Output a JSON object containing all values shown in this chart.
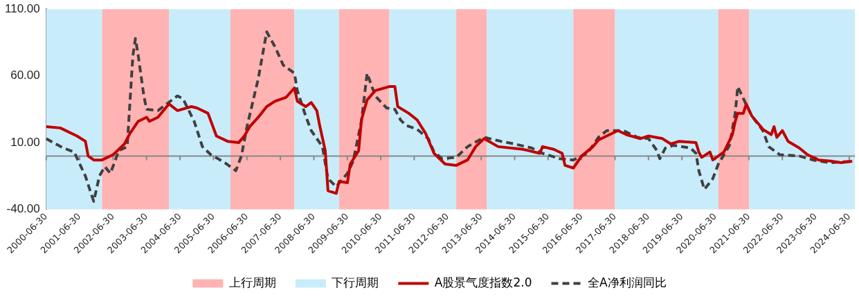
{
  "chart_data": {
    "type": "line",
    "xlim": [
      "2000-06-30",
      "2024-08-31"
    ],
    "xticks": [
      "2000-06-30",
      "2001-06-30",
      "2002-06-30",
      "2003-06-30",
      "2004-06-30",
      "2005-06-30",
      "2006-06-30",
      "2007-06-30",
      "2008-06-30",
      "2009-06-30",
      "2010-06-30",
      "2011-06-30",
      "2012-06-30",
      "2013-06-30",
      "2014-06-30",
      "2015-06-30",
      "2016-06-30",
      "2017-06-30",
      "2018-06-30",
      "2019-06-30",
      "2020-06-30",
      "2021-06-30",
      "2022-06-30",
      "2023-06-30",
      "2024-06-30"
    ],
    "ylim": [
      -40,
      110
    ],
    "yticks": [
      {
        "value": -40,
        "label": "-40.00"
      },
      {
        "value": 10,
        "label": "10.00"
      },
      {
        "value": 60,
        "label": "60.00"
      },
      {
        "value": 110,
        "label": "110.00"
      }
    ],
    "grid": false,
    "legend": "bottom",
    "marker": "none",
    "bands": [
      {
        "axis": "x",
        "from": "2002-03",
        "to": "2004-03",
        "label": "上行周期",
        "color": "#ffb3b3"
      },
      {
        "axis": "x",
        "from": "2000-06-30",
        "to": "2002-03",
        "label": "下行周期",
        "color": "#c9ecfa"
      },
      {
        "axis": "x",
        "from": "2004-03",
        "to": "2006-01",
        "color": "#c9ecfa"
      },
      {
        "axis": "x",
        "from": "2006-01",
        "to": "2007-12",
        "color": "#ffb3b3"
      },
      {
        "axis": "x",
        "from": "2007-12",
        "to": "2009-04",
        "color": "#c9ecfa"
      },
      {
        "axis": "x",
        "from": "2009-04",
        "to": "2010-10",
        "color": "#ffb3b3"
      },
      {
        "axis": "x",
        "from": "2010-10",
        "to": "2012-10",
        "color": "#c9ecfa"
      },
      {
        "axis": "x",
        "from": "2012-10",
        "to": "2013-09",
        "color": "#ffb3b3"
      },
      {
        "axis": "x",
        "from": "2013-09",
        "to": "2016-04",
        "color": "#c9ecfa"
      },
      {
        "axis": "x",
        "from": "2016-04",
        "to": "2017-07",
        "color": "#ffb3b3"
      },
      {
        "axis": "x",
        "from": "2017-07",
        "to": "2020-08",
        "color": "#c9ecfa"
      },
      {
        "axis": "x",
        "from": "2020-08",
        "to": "2021-07",
        "color": "#ffb3b3"
      },
      {
        "axis": "x",
        "from": "2021-07",
        "to": "2024-08-31",
        "color": "#c9ecfa"
      }
    ],
    "ref_lines": [
      {
        "axis": "y",
        "value": 0,
        "color": "#888888"
      }
    ],
    "series": [
      {
        "name": "A股景气度指数2.0",
        "color": "#c00000",
        "line_style": "solid",
        "x": [
          "2000-06-30",
          "2000-12",
          "2001-06",
          "2001-09",
          "2001-10",
          "2001-12",
          "2002-03",
          "2002-07",
          "2002-11",
          "2003-01",
          "2003-04",
          "2003-07",
          "2003-08",
          "2003-11",
          "2004-01",
          "2004-03",
          "2004-06",
          "2004-11",
          "2005-01",
          "2005-05",
          "2005-08",
          "2005-12",
          "2006-04",
          "2006-06",
          "2006-08",
          "2006-11",
          "2007-02",
          "2007-05",
          "2007-09",
          "2007-12",
          "2008-01",
          "2008-04",
          "2008-06",
          "2008-08",
          "2008-09",
          "2008-11",
          "2008-12",
          "2009-03",
          "2009-04",
          "2009-07",
          "2009-08",
          "2009-11",
          "2009-12",
          "2010-02",
          "2010-05",
          "2010-10",
          "2010-12",
          "2011-01",
          "2011-05",
          "2011-08",
          "2011-11",
          "2012-02",
          "2012-06",
          "2012-10",
          "2013-02",
          "2013-05",
          "2013-08",
          "2014-01",
          "2014-10",
          "2015-04",
          "2015-05",
          "2015-09",
          "2015-12",
          "2016-01",
          "2016-04",
          "2016-07",
          "2016-11",
          "2017-01",
          "2017-05",
          "2017-08",
          "2017-11",
          "2018-04",
          "2018-07",
          "2018-12",
          "2019-03",
          "2019-06",
          "2019-12",
          "2020-01",
          "2020-02",
          "2020-05",
          "2020-06",
          "2020-10",
          "2021-01",
          "2021-02",
          "2021-03",
          "2021-05",
          "2021-06",
          "2021-08",
          "2021-12",
          "2022-03",
          "2022-04",
          "2022-05",
          "2022-07",
          "2022-09",
          "2023-01",
          "2023-04",
          "2023-08",
          "2024-01",
          "2024-04",
          "2024-08"
        ],
        "values": [
          22,
          21,
          15,
          11,
          0,
          -3,
          -3,
          1,
          9,
          17,
          26,
          29,
          26,
          29,
          34,
          39,
          34,
          37,
          36,
          32,
          15,
          11,
          10,
          15,
          22,
          29,
          37,
          41,
          44,
          51,
          41,
          37,
          40,
          34,
          23,
          4,
          -26,
          -28,
          -19,
          -20,
          -6,
          4,
          27,
          42,
          49,
          52,
          52,
          37,
          32,
          27,
          17,
          2,
          -6,
          -7,
          -3,
          7,
          13,
          7,
          5,
          2,
          7,
          5,
          2,
          -7,
          -9,
          0,
          7,
          12,
          16,
          19,
          16,
          13,
          15,
          13,
          9,
          11,
          10,
          3,
          -1,
          3,
          -3,
          3,
          16,
          26,
          32,
          32,
          39,
          30,
          20,
          16,
          22,
          14,
          19,
          11,
          6,
          1,
          -3,
          -4,
          -5,
          -4
        ]
      },
      {
        "name": "全A净利润同比",
        "color": "#404040",
        "line_style": "dashed",
        "x": [
          "2000-06-30",
          "2001-01",
          "2001-05",
          "2001-09",
          "2001-11",
          "2001-12",
          "2002-02",
          "2002-04",
          "2002-06",
          "2002-09",
          "2002-12",
          "2003-02",
          "2003-03",
          "2003-04",
          "2003-06",
          "2003-07",
          "2003-11",
          "2004-06",
          "2004-08",
          "2004-12",
          "2005-03",
          "2005-06",
          "2005-11",
          "2006-03",
          "2006-05",
          "2006-07",
          "2006-11",
          "2007-02",
          "2007-05",
          "2007-08",
          "2007-12",
          "2008-01",
          "2008-04",
          "2008-06",
          "2008-10",
          "2008-12",
          "2009-03",
          "2009-07",
          "2009-09",
          "2009-12",
          "2010-02",
          "2010-05",
          "2010-09",
          "2010-12",
          "2011-02",
          "2011-04",
          "2011-08",
          "2011-12",
          "2012-02",
          "2012-05",
          "2012-10",
          "2013-02",
          "2013-08",
          "2014-02",
          "2014-07",
          "2015-01",
          "2015-05",
          "2015-11",
          "2016-04",
          "2016-09",
          "2017-01",
          "2017-04",
          "2017-10",
          "2018-03",
          "2018-07",
          "2018-10",
          "2018-11",
          "2019-01",
          "2019-04",
          "2019-10",
          "2019-12",
          "2020-01",
          "2020-03",
          "2020-06",
          "2020-08",
          "2020-12",
          "2021-02",
          "2021-03",
          "2021-05",
          "2021-08",
          "2021-12",
          "2022-02",
          "2022-06",
          "2023-01",
          "2023-06",
          "2023-12",
          "2024-08"
        ],
        "values": [
          13,
          6,
          3,
          -15,
          -28,
          -34,
          -15,
          -8,
          -13,
          4,
          7,
          75,
          88,
          75,
          45,
          35,
          34,
          45,
          43,
          26,
          7,
          1,
          -5,
          -11,
          0,
          22,
          58,
          93,
          82,
          68,
          62,
          49,
          30,
          19,
          7,
          -17,
          -23,
          -13,
          -4,
          26,
          62,
          45,
          36,
          35,
          27,
          23,
          20,
          13,
          3,
          -2,
          -1,
          7,
          14,
          11,
          9,
          6,
          2,
          -2,
          -3,
          2,
          14,
          19,
          19,
          14,
          13,
          4,
          -2,
          6,
          8,
          6,
          2,
          -11,
          -25,
          -17,
          -6,
          8,
          32,
          52,
          43,
          30,
          19,
          7,
          1,
          0,
          -3,
          -5,
          -4
        ]
      }
    ]
  }
}
